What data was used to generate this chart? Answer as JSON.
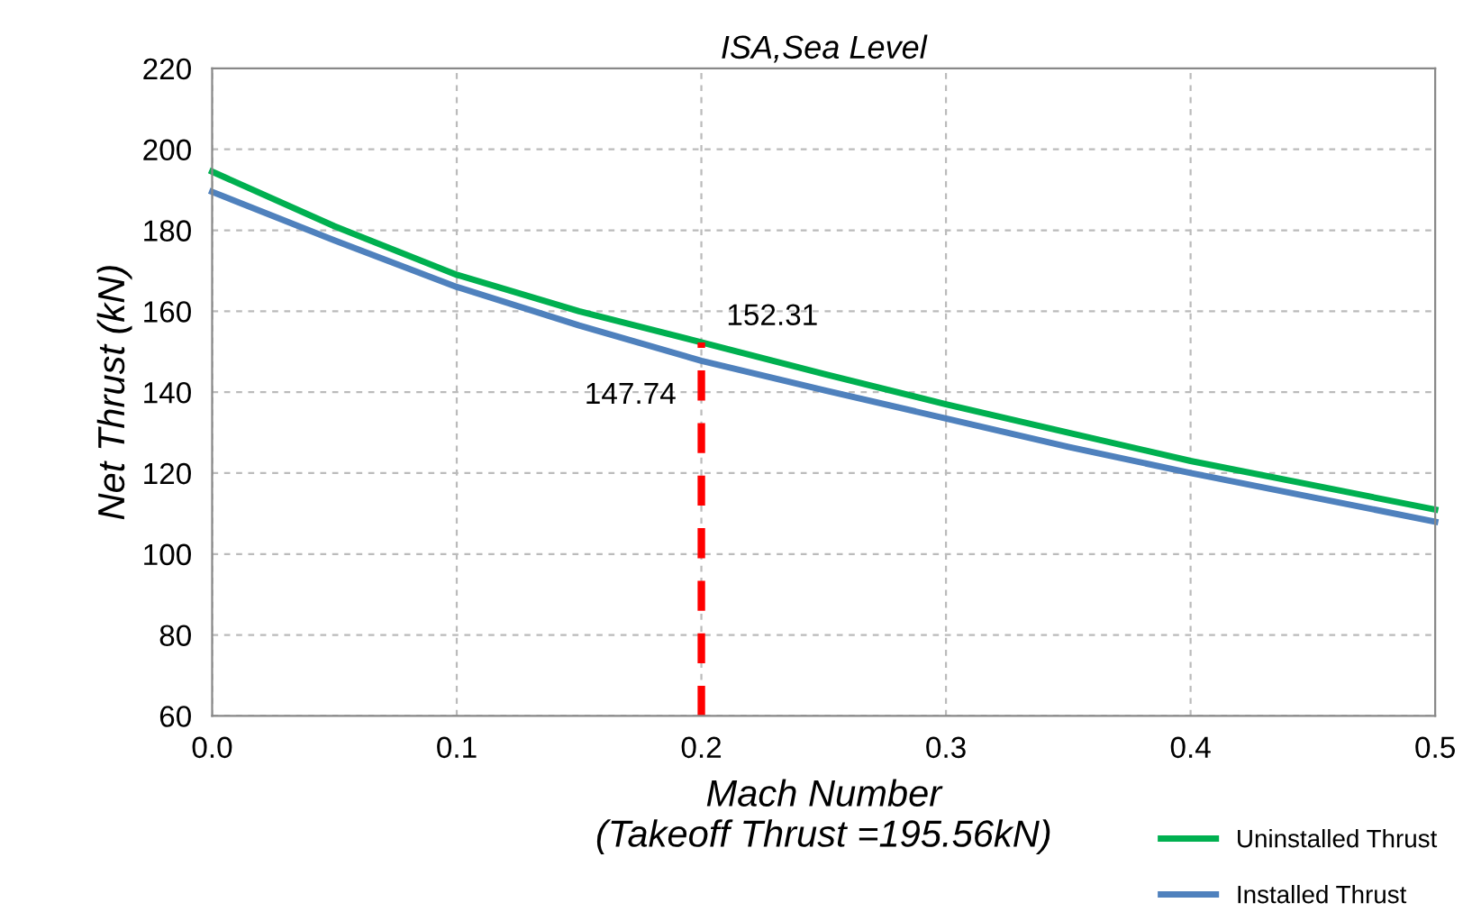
{
  "chart_data": {
    "type": "line",
    "title": "ISA,Sea Level",
    "xlabel": "Mach Number\n(Takeoff Thrust =195.56kN)",
    "ylabel": "Net Thrust (kN)",
    "x": [
      0.0,
      0.05,
      0.1,
      0.15,
      0.2,
      0.25,
      0.3,
      0.35,
      0.4,
      0.45,
      0.5
    ],
    "series": [
      {
        "name": "Uninstalled Thrust",
        "color": "#00b050",
        "values": [
          194.5,
          181,
          169,
          160,
          152.31,
          144.5,
          137,
          130,
          123,
          117,
          111
        ]
      },
      {
        "name": "Installed Thrust",
        "color": "#4f81bd",
        "values": [
          189.5,
          177.5,
          166,
          156.5,
          147.74,
          140.5,
          133.5,
          126.5,
          120,
          114,
          108
        ]
      },
      {
        "type": "line",
        "color": "#ff0000",
        "line_style": "dashed",
        "x": [
          0.2,
          0.2
        ],
        "values": [
          60,
          152.31
        ]
      }
    ],
    "annotations": [
      {
        "text": "152.31",
        "x": 0.2,
        "y": 152.31
      },
      {
        "text": "147.74",
        "x": 0.2,
        "y": 147.74
      }
    ],
    "xlim": [
      0.0,
      0.5
    ],
    "xticks": [
      {
        "value": 0.0,
        "label": "0.0"
      },
      0.1,
      0.2,
      0.3,
      0.4,
      0.5
    ],
    "ylim": [
      60,
      220
    ],
    "yticks": [
      60,
      80,
      100,
      120,
      140,
      160,
      180,
      200,
      220
    ],
    "grid": true,
    "legend": "bottom right",
    "line_style": "solid",
    "marker": "none"
  }
}
